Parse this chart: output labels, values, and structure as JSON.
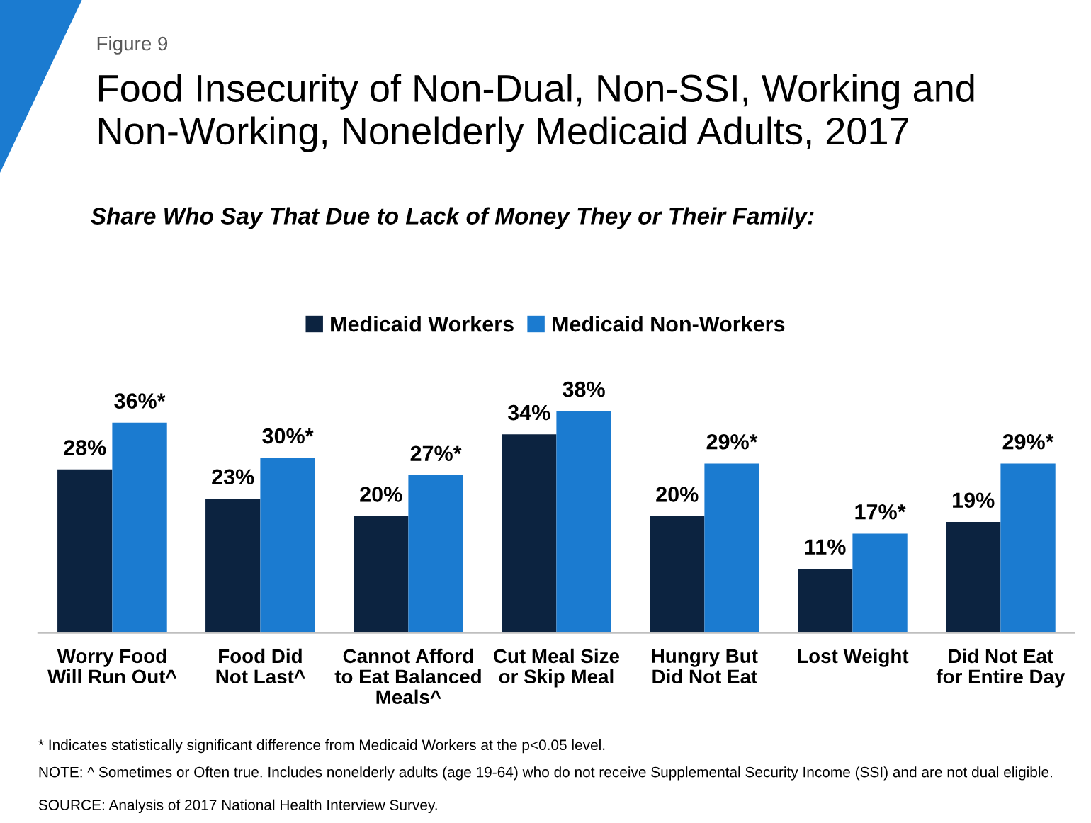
{
  "chart_data": {
    "type": "bar",
    "title": "Food Insecurity of Non-Dual, Non-SSI, Working and Non-Working, Nonelderly Medicaid Adults, 2017",
    "subtitle": "Share Who Say That Due to Lack of Money They or Their Family:",
    "categories": [
      "Worry Food\nWill Run Out^",
      "Food Did\nNot Last^",
      "Cannot Afford\nto Eat Balanced\nMeals^",
      "Cut Meal Size\nor Skip Meal",
      "Hungry But\nDid Not Eat",
      "Lost Weight",
      "Did Not Eat\nfor Entire Day"
    ],
    "series": [
      {
        "name": "Medicaid Workers",
        "color": "#0c2340",
        "values": [
          28,
          23,
          20,
          34,
          20,
          11,
          19
        ],
        "value_labels": [
          "28%",
          "23%",
          "20%",
          "34%",
          "20%",
          "11%",
          "19%"
        ]
      },
      {
        "name": "Medicaid Non-Workers",
        "color": "#1b7bd0",
        "values": [
          36,
          30,
          27,
          38,
          29,
          17,
          29
        ],
        "value_labels": [
          "36%*",
          "30%*",
          "27%*",
          "38%",
          "29%*",
          "17%*",
          "29%*"
        ]
      }
    ],
    "legend": "top",
    "grid": false,
    "annotations": [
      "Figure 9",
      "* Indicates statistically significant difference from Medicaid Workers at the p<0.05 level.",
      "NOTE: ^ Sometimes or Often true. Includes nonelderly adults (age 19-64) who do not receive Supplemental Security Income (SSI) and are not dual eligible.",
      "SOURCE: Analysis of 2017 National Health Interview Survey."
    ]
  }
}
